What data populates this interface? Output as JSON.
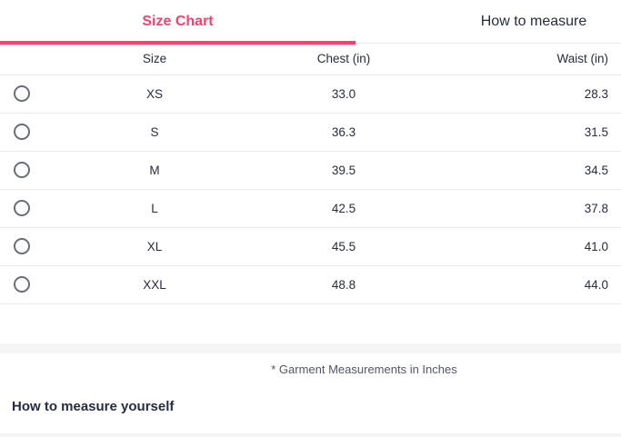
{
  "accent_color": "#ff3f6c",
  "tabs": {
    "size_chart": "Size Chart",
    "how_to_measure": "How to measure"
  },
  "size_table": {
    "columns": {
      "size": "Size",
      "chest": "Chest (in)",
      "waist": "Waist (in)"
    },
    "rows": [
      {
        "size": "XS",
        "chest": "33.0",
        "waist": "28.3"
      },
      {
        "size": "S",
        "chest": "36.3",
        "waist": "31.5"
      },
      {
        "size": "M",
        "chest": "39.5",
        "waist": "34.5"
      },
      {
        "size": "L",
        "chest": "42.5",
        "waist": "37.8"
      },
      {
        "size": "XL",
        "chest": "45.5",
        "waist": "41.0"
      },
      {
        "size": "XXL",
        "chest": "48.8",
        "waist": "44.0"
      }
    ]
  },
  "footnote": "* Garment Measurements in Inches",
  "section_heading": "How to measure yourself"
}
